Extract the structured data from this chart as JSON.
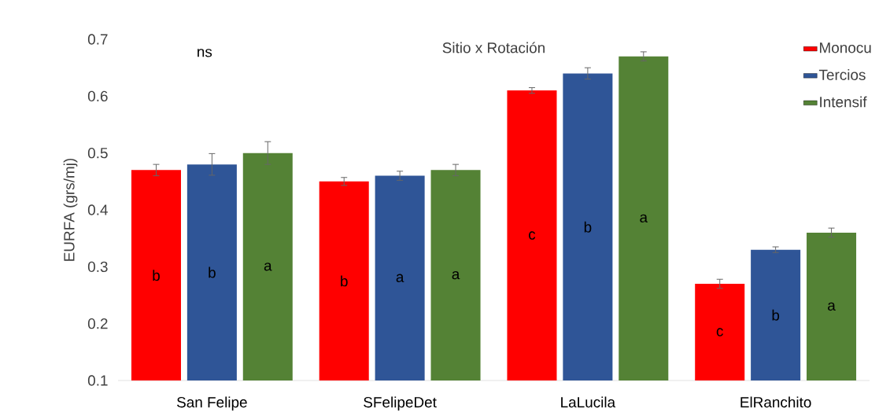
{
  "chart_data": {
    "type": "bar",
    "title": "Sitio x Rotación",
    "ylabel": "EURFA (grs/mj)",
    "categories": [
      "San Felipe",
      "SFelipeDet",
      "LaLucila",
      "ElRanchito"
    ],
    "series": [
      {
        "name": "Monocu",
        "color": "#ff0000",
        "values": [
          0.47,
          0.45,
          0.61,
          0.27
        ],
        "errors": [
          0.01,
          0.007,
          0.005,
          0.008
        ],
        "value_labels": [
          "b",
          "b",
          "c",
          "c"
        ]
      },
      {
        "name": "Tercios",
        "color": "#2f5597",
        "values": [
          0.48,
          0.46,
          0.64,
          0.33
        ],
        "errors": [
          0.019,
          0.008,
          0.01,
          0.005
        ],
        "value_labels": [
          "b",
          "a",
          "b",
          "b"
        ]
      },
      {
        "name": "Intensif",
        "color": "#548235",
        "values": [
          0.5,
          0.47,
          0.67,
          0.36
        ],
        "errors": [
          0.02,
          0.01,
          0.008,
          0.008
        ],
        "value_labels": [
          "a",
          "a",
          "a",
          "a"
        ]
      }
    ],
    "ylim": [
      0.1,
      0.7
    ],
    "yticks": [
      0.1,
      0.2,
      0.3,
      0.4,
      0.5,
      0.6,
      0.7
    ],
    "legend": "top right",
    "annotations": [
      "ns"
    ]
  }
}
